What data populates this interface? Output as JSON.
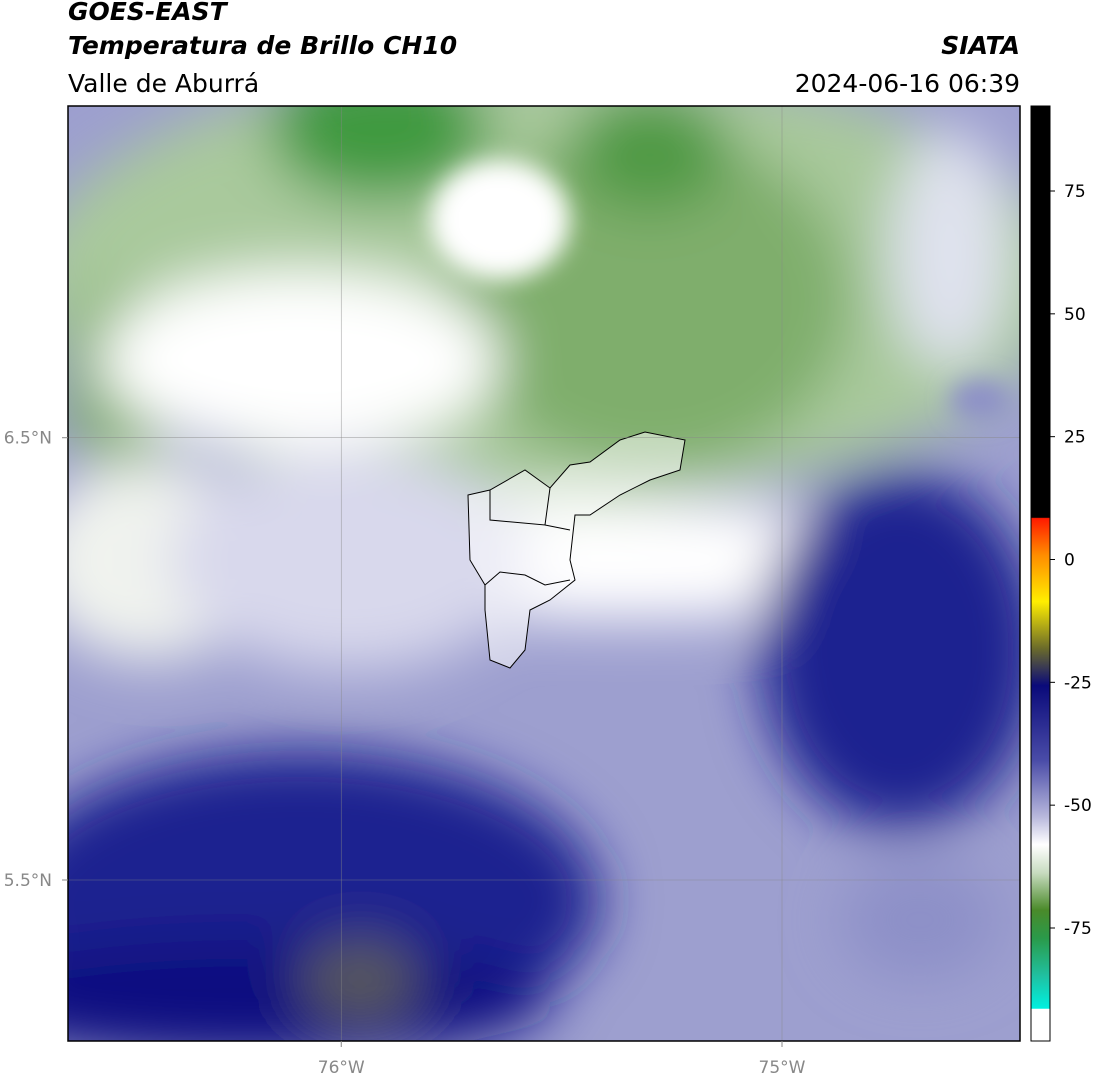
{
  "header": {
    "title": "GOES-EAST",
    "subtitle": "Temperatura de Brillo CH10",
    "region": "Valle de Aburrá",
    "source": "SIATA",
    "timestamp": "2024-06-16 06:39"
  },
  "map": {
    "xlim": [
      -76.62,
      -74.46
    ],
    "ylim": [
      5.136,
      7.25
    ],
    "xticks": [
      {
        "value": -76,
        "label": "76°W"
      },
      {
        "value": -75,
        "label": "75°W"
      }
    ],
    "yticks": [
      {
        "value": 6.5,
        "label": "6.5°N"
      },
      {
        "value": 5.5,
        "label": "5.5°N"
      }
    ],
    "grid": true
  },
  "colorbar": {
    "lim": [
      -98,
      92.3
    ],
    "ticks": [
      75,
      50,
      25,
      0,
      -25,
      -50,
      -75
    ]
  }
}
